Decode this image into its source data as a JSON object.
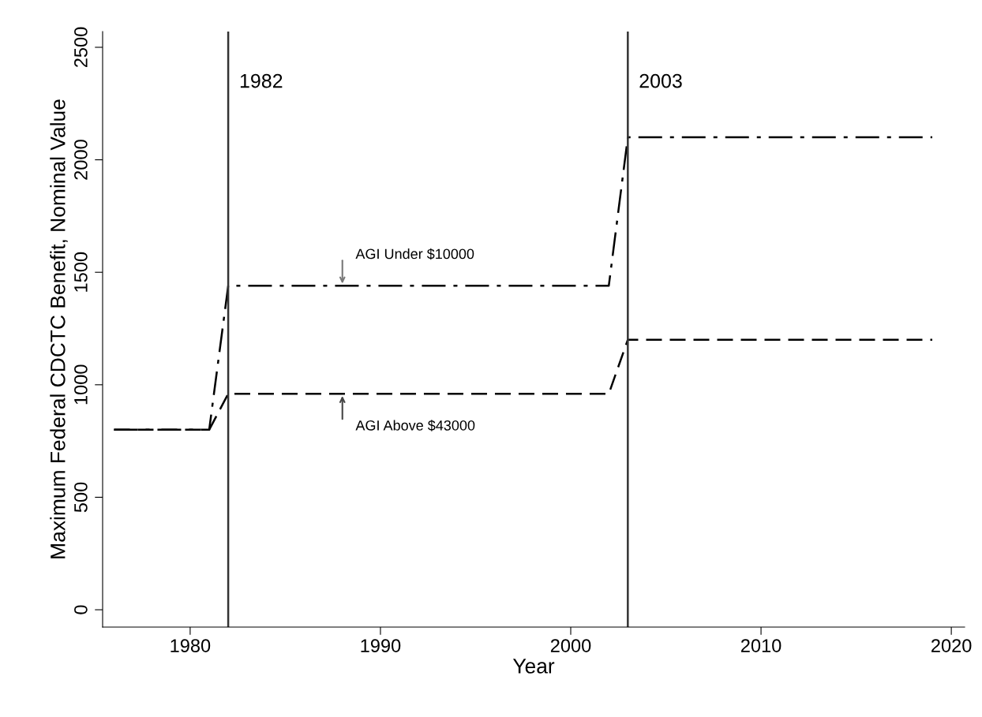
{
  "chart_data": {
    "type": "line",
    "xlabel": "Year",
    "ylabel": "Maximum Federal CDCTC Benefit, Nominal Value",
    "xlim": [
      1975.4,
      2020.7
    ],
    "ylim": [
      -77,
      2570
    ],
    "xticks": [
      1980,
      1990,
      2000,
      2010,
      2020
    ],
    "yticks": [
      0,
      500,
      1000,
      1500,
      2000,
      2500
    ],
    "grid": false,
    "legend": false,
    "marker": "none",
    "series": [
      {
        "color": "#000000",
        "line_style": "dashdot",
        "x": [
          1976,
          1981,
          1982,
          2002,
          2003,
          2019
        ],
        "values": [
          800,
          800,
          1440,
          1440,
          2100,
          2100
        ]
      },
      {
        "color": "#000000",
        "line_style": "dashed",
        "x": [
          1976,
          1981,
          1982,
          2002,
          2003,
          2019
        ],
        "values": [
          800,
          800,
          960,
          960,
          1200,
          1200
        ]
      }
    ],
    "ref_lines": [
      {
        "axis": "x",
        "value": 1982,
        "label": "1982",
        "color": "#333333"
      },
      {
        "axis": "x",
        "value": 2003,
        "label": "2003",
        "color": "#333333"
      }
    ],
    "annotations": [
      {
        "text": "AGI Under $10000",
        "x": 1988,
        "y": 1440
      },
      {
        "text": "AGI Above $43000",
        "x": 1988,
        "y": 960
      }
    ]
  }
}
